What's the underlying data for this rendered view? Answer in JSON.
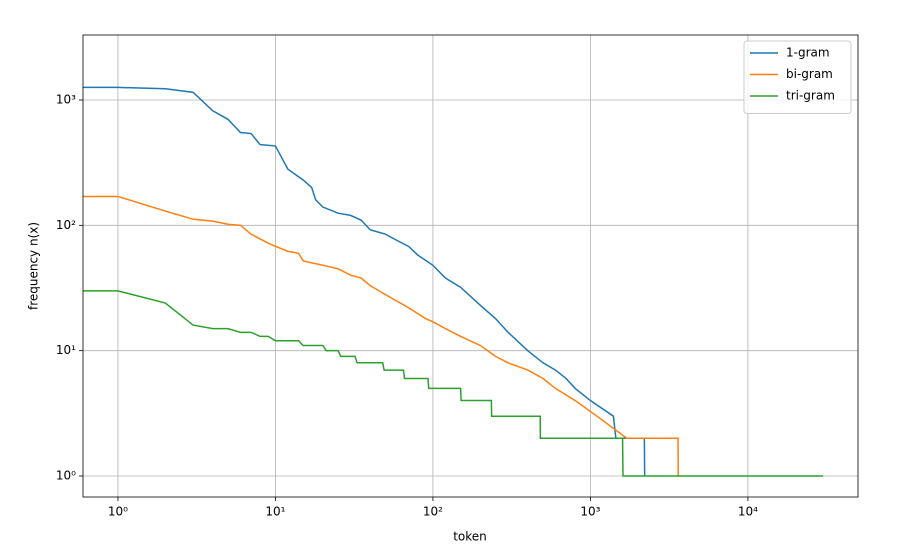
{
  "chart_data": {
    "type": "line",
    "x_label": "token",
    "y_label": "frequency n(x)",
    "log_x": true,
    "log_y": true,
    "grid": true,
    "legend": "upper right",
    "xlim": [
      0.6,
      50000
    ],
    "ylim": [
      0.68,
      3300
    ],
    "xticks": [
      {
        "value": 1,
        "label": "10⁰"
      },
      {
        "value": 10,
        "label": "10¹"
      },
      {
        "value": 100,
        "label": "10²"
      },
      {
        "value": 1000,
        "label": "10³"
      },
      {
        "value": 10000,
        "label": "10⁴"
      }
    ],
    "yticks": [
      {
        "value": 1,
        "label": "10⁰"
      },
      {
        "value": 10,
        "label": "10¹"
      },
      {
        "value": 100,
        "label": "10²"
      },
      {
        "value": 1000,
        "label": "10³"
      }
    ],
    "series": [
      {
        "name": "1-gram",
        "color": "#1f77b4",
        "x": [
          0.6,
          1,
          2,
          3,
          4,
          5,
          6,
          7,
          8,
          10,
          12,
          15,
          17,
          18,
          20,
          25,
          30,
          35,
          40,
          50,
          60,
          70,
          80,
          100,
          120,
          150,
          200,
          250,
          300,
          400,
          500,
          600,
          700,
          800,
          1000,
          1400,
          1450,
          2200,
          2210
        ],
        "values": [
          1260,
          1260,
          1230,
          1150,
          820,
          700,
          550,
          540,
          440,
          430,
          280,
          230,
          200,
          160,
          140,
          125,
          120,
          110,
          92,
          85,
          75,
          68,
          58,
          48,
          38,
          32,
          23,
          18,
          14,
          10,
          8,
          7,
          6,
          5,
          4,
          3,
          2,
          2,
          1
        ]
      },
      {
        "name": "bi-gram",
        "color": "#ff7f0e",
        "x": [
          0.6,
          1,
          2,
          3,
          4,
          5,
          6,
          7,
          9,
          10,
          12,
          14,
          15,
          20,
          25,
          30,
          35,
          40,
          50,
          70,
          90,
          100,
          120,
          150,
          200,
          250,
          300,
          400,
          500,
          600,
          800,
          1100,
          1700,
          3600,
          3610
        ],
        "values": [
          170,
          170,
          130,
          112,
          108,
          102,
          100,
          85,
          72,
          68,
          62,
          60,
          52,
          48,
          45,
          40,
          38,
          33,
          28,
          22,
          18,
          17,
          15,
          13,
          11,
          9,
          8,
          7,
          6,
          5,
          4,
          3,
          2,
          2,
          1
        ]
      },
      {
        "name": "tri-gram",
        "color": "#2ca02c",
        "x": [
          0.6,
          1,
          2,
          3,
          4,
          5,
          6,
          7,
          8,
          9,
          10,
          14,
          15,
          20,
          21,
          25,
          26,
          32,
          33,
          48,
          49,
          65,
          66,
          93,
          94,
          150,
          151,
          235,
          236,
          480,
          481,
          1600,
          1610,
          30000
        ],
        "values": [
          30,
          30,
          24,
          16,
          15,
          15,
          14,
          14,
          13,
          13,
          12,
          12,
          11,
          11,
          10,
          10,
          9,
          9,
          8,
          8,
          7,
          7,
          6,
          6,
          5,
          5,
          4,
          4,
          3,
          3,
          2,
          2,
          1,
          1
        ]
      }
    ]
  }
}
